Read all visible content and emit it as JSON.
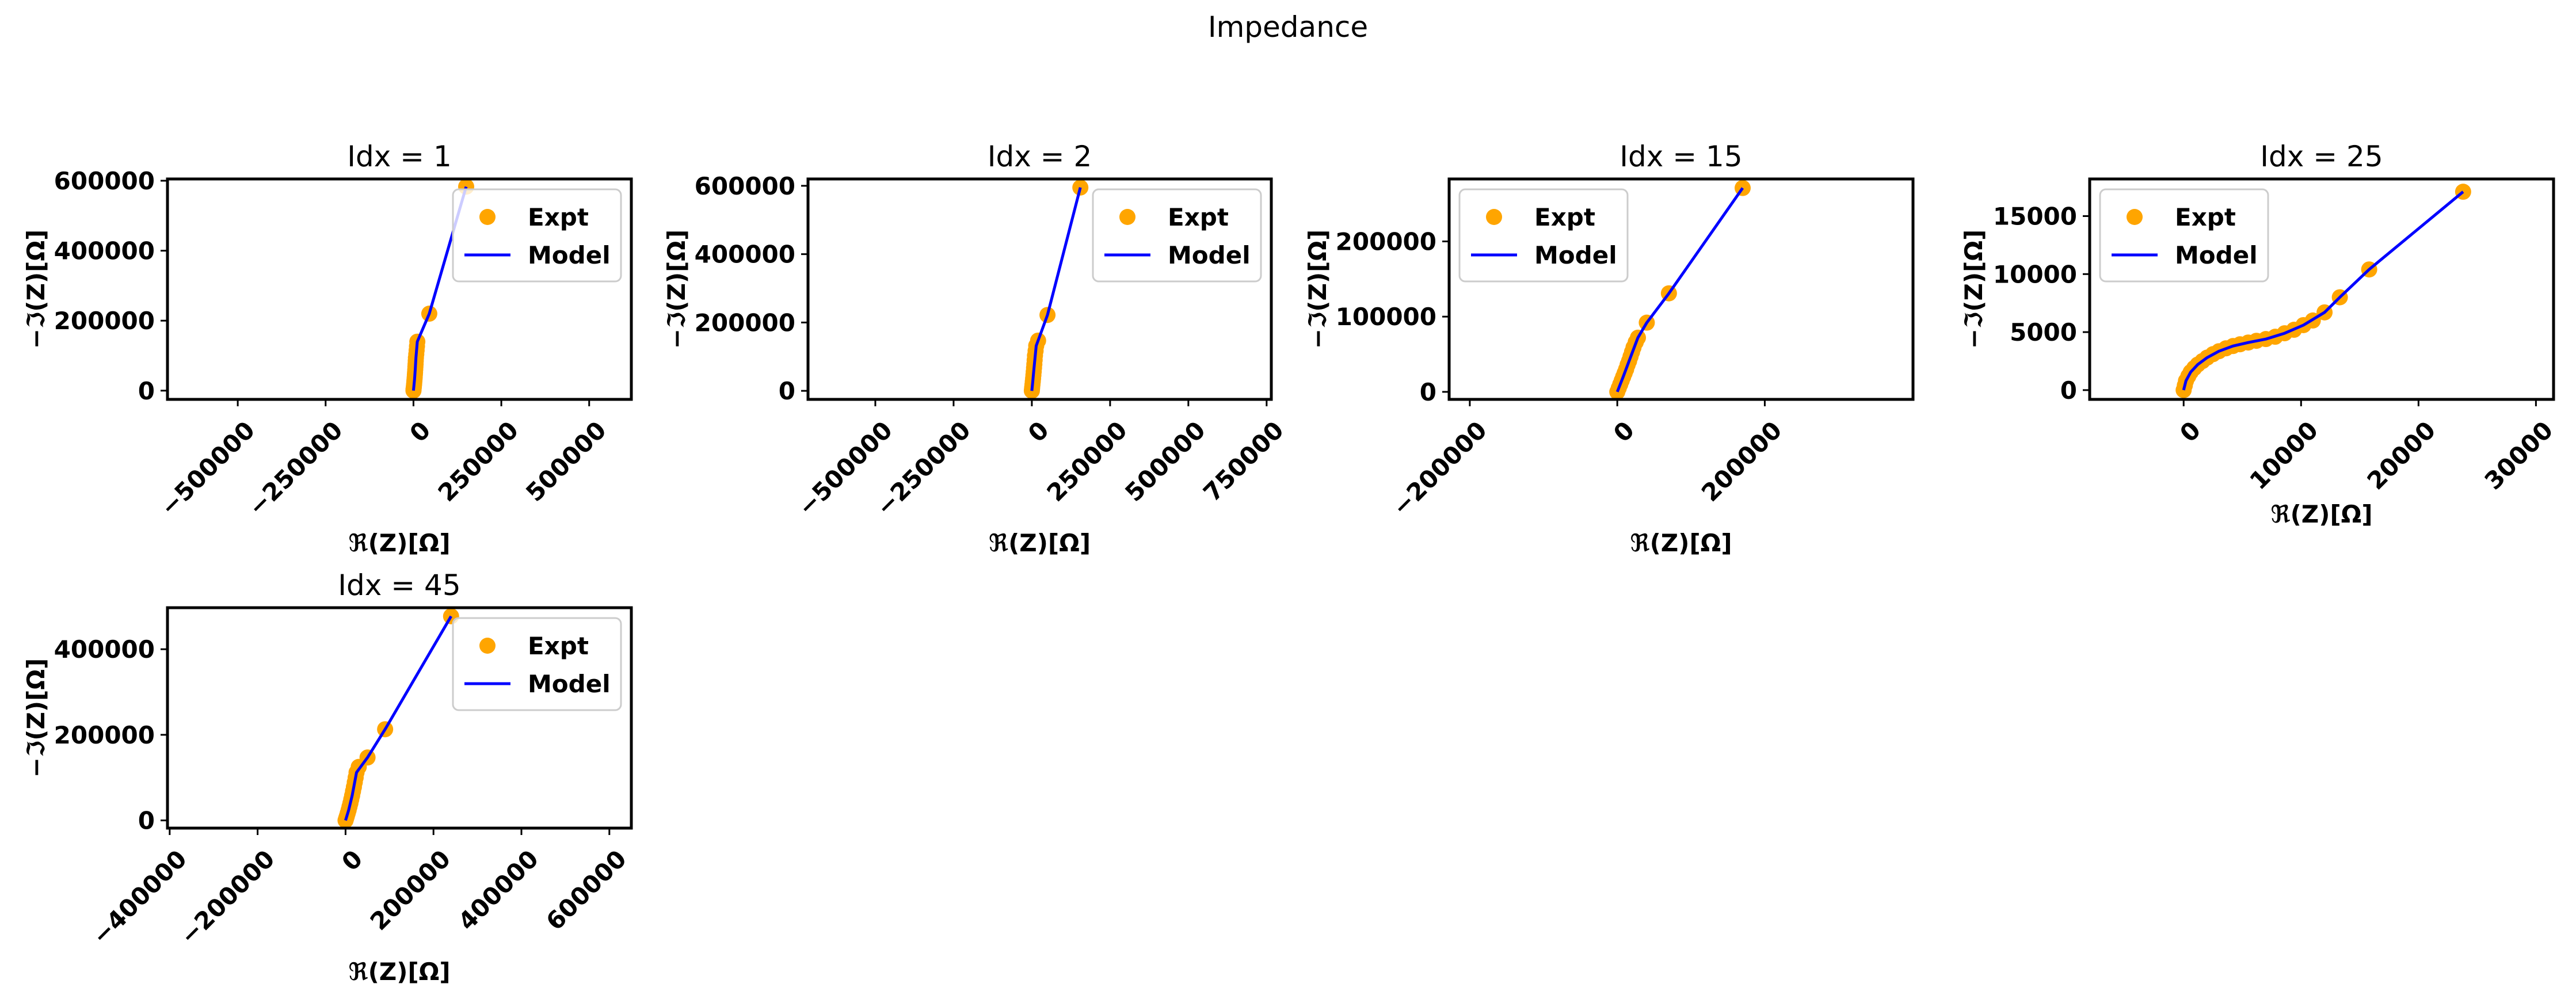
{
  "figure": {
    "title": "Impedance"
  },
  "colors": {
    "expt": "#FFA500",
    "model": "#0000FF",
    "axes": "#000000"
  },
  "chart_data": [
    {
      "type": "scatter",
      "title": "Idx = 1",
      "xlabel": "ℜ(Z)[Ω]",
      "ylabel": "−ℑ(Z)[Ω]",
      "xlim": [
        -700000,
        620000
      ],
      "ylim": [
        -25000,
        605000
      ],
      "xticks": [
        -500000,
        -250000,
        0,
        250000,
        500000
      ],
      "xtick_labels": [
        "−500000",
        "−250000",
        "0",
        "250000",
        "500000"
      ],
      "yticks": [
        0,
        200000,
        400000,
        600000
      ],
      "ytick_labels": [
        "0",
        "200000",
        "400000",
        "600000"
      ],
      "grid": false,
      "legend": "top-right",
      "series": [
        {
          "name": "Expt",
          "kind": "markers",
          "color": "#FFA500",
          "points": [
            [
              0,
              0
            ],
            [
              200,
              3000
            ],
            [
              500,
              6000
            ],
            [
              1000,
              10000
            ],
            [
              1500,
              15000
            ],
            [
              2000,
              20000
            ],
            [
              2500,
              26000
            ],
            [
              3000,
              32000
            ],
            [
              3500,
              38000
            ],
            [
              4000,
              45000
            ],
            [
              4500,
              52000
            ],
            [
              5000,
              60000
            ],
            [
              5500,
              68000
            ],
            [
              6000,
              76000
            ],
            [
              6500,
              85000
            ],
            [
              7000,
              94000
            ],
            [
              8000,
              104000
            ],
            [
              9000,
              115000
            ],
            [
              10000,
              127000
            ],
            [
              11000,
              140000
            ],
            [
              45000,
              220000
            ],
            [
              150000,
              583000
            ]
          ]
        },
        {
          "name": "Model",
          "kind": "line",
          "color": "#0000FF",
          "points": [
            [
              0,
              0
            ],
            [
              1000,
              10000
            ],
            [
              3000,
              32000
            ],
            [
              5000,
              60000
            ],
            [
              7000,
              94000
            ],
            [
              11000,
              140000
            ],
            [
              45000,
              220000
            ],
            [
              150000,
              583000
            ]
          ]
        }
      ]
    },
    {
      "type": "scatter",
      "title": "Idx = 2",
      "xlabel": "ℜ(Z)[Ω]",
      "ylabel": "−ℑ(Z)[Ω]",
      "xlim": [
        -715000,
        765000
      ],
      "ylim": [
        -25000,
        620000
      ],
      "xticks": [
        -500000,
        -250000,
        0,
        250000,
        500000,
        750000
      ],
      "xtick_labels": [
        "−500000",
        "−250000",
        "0",
        "250000",
        "500000",
        "750000"
      ],
      "yticks": [
        0,
        200000,
        400000,
        600000
      ],
      "ytick_labels": [
        "0",
        "200000",
        "400000",
        "600000"
      ],
      "grid": false,
      "legend": "top-right",
      "series": [
        {
          "name": "Expt",
          "kind": "markers",
          "color": "#FFA500",
          "points": [
            [
              0,
              0
            ],
            [
              500,
              5000
            ],
            [
              1000,
              10000
            ],
            [
              2000,
              18000
            ],
            [
              3000,
              27000
            ],
            [
              4000,
              36000
            ],
            [
              5000,
              46000
            ],
            [
              6000,
              56000
            ],
            [
              7000,
              67000
            ],
            [
              8000,
              78000
            ],
            [
              9000,
              90000
            ],
            [
              10000,
              103000
            ],
            [
              12000,
              117000
            ],
            [
              14000,
              132000
            ],
            [
              20000,
              147000
            ],
            [
              50000,
              222000
            ],
            [
              155000,
              595000
            ]
          ]
        },
        {
          "name": "Model",
          "kind": "line",
          "color": "#0000FF",
          "points": [
            [
              0,
              0
            ],
            [
              3000,
              27000
            ],
            [
              7000,
              67000
            ],
            [
              14000,
              132000
            ],
            [
              50000,
              222000
            ],
            [
              155000,
              595000
            ]
          ]
        }
      ]
    },
    {
      "type": "scatter",
      "title": "Idx = 15",
      "xlabel": "ℜ(Z)[Ω]",
      "ylabel": "−ℑ(Z)[Ω]",
      "xlim": [
        -228000,
        401000
      ],
      "ylim": [
        -10000,
        283000
      ],
      "xticks": [
        -200000,
        0,
        200000
      ],
      "xtick_labels": [
        "−200000",
        "0",
        "200000"
      ],
      "yticks": [
        0,
        100000,
        200000
      ],
      "ytick_labels": [
        "0",
        "100000",
        "200000"
      ],
      "grid": false,
      "legend": "top-left",
      "series": [
        {
          "name": "Expt",
          "kind": "markers",
          "color": "#FFA500",
          "points": [
            [
              0,
              0
            ],
            [
              2000,
              5000
            ],
            [
              4000,
              10000
            ],
            [
              6000,
              15000
            ],
            [
              8000,
              20000
            ],
            [
              10000,
              25000
            ],
            [
              12000,
              30000
            ],
            [
              14000,
              36000
            ],
            [
              16000,
              41000
            ],
            [
              18000,
              47000
            ],
            [
              20000,
              53000
            ],
            [
              22000,
              59000
            ],
            [
              25000,
              66000
            ],
            [
              28000,
              72000
            ],
            [
              40000,
              92000
            ],
            [
              70000,
              131000
            ],
            [
              170000,
              271000
            ]
          ]
        },
        {
          "name": "Model",
          "kind": "line",
          "color": "#0000FF",
          "points": [
            [
              0,
              0
            ],
            [
              8000,
              20000
            ],
            [
              16000,
              41000
            ],
            [
              28000,
              72000
            ],
            [
              40000,
              92000
            ],
            [
              70000,
              131000
            ],
            [
              170000,
              271000
            ]
          ]
        }
      ]
    },
    {
      "type": "scatter",
      "title": "Idx = 25",
      "xlabel": "ℜ(Z)[Ω]",
      "ylabel": "−ℑ(Z)[Ω]",
      "xlim": [
        -8000,
        31500
      ],
      "ylim": [
        -800,
        18200
      ],
      "xticks": [
        0,
        10000,
        20000,
        30000
      ],
      "xtick_labels": [
        "0",
        "10000",
        "20000",
        "30000"
      ],
      "yticks": [
        0,
        5000,
        10000,
        15000
      ],
      "ytick_labels": [
        "0",
        "5000",
        "10000",
        "15000"
      ],
      "grid": false,
      "legend": "top-left",
      "series": [
        {
          "name": "Expt",
          "kind": "markers",
          "color": "#FFA500",
          "points": [
            [
              0,
              0
            ],
            [
              100,
              400
            ],
            [
              200,
              800
            ],
            [
              400,
              1200
            ],
            [
              600,
              1550
            ],
            [
              900,
              1900
            ],
            [
              1200,
              2200
            ],
            [
              1600,
              2500
            ],
            [
              2000,
              2800
            ],
            [
              2500,
              3100
            ],
            [
              3000,
              3350
            ],
            [
              3600,
              3600
            ],
            [
              4200,
              3800
            ],
            [
              4800,
              3950
            ],
            [
              5500,
              4100
            ],
            [
              6200,
              4250
            ],
            [
              7000,
              4400
            ],
            [
              7800,
              4600
            ],
            [
              8600,
              4900
            ],
            [
              9400,
              5200
            ],
            [
              10200,
              5600
            ],
            [
              11000,
              6000
            ],
            [
              12000,
              6700
            ],
            [
              13300,
              8000
            ],
            [
              15800,
              10400
            ],
            [
              23800,
              17100
            ]
          ]
        },
        {
          "name": "Model",
          "kind": "line",
          "color": "#0000FF",
          "points": [
            [
              0,
              0
            ],
            [
              200,
              800
            ],
            [
              600,
              1550
            ],
            [
              1200,
              2200
            ],
            [
              2000,
              2800
            ],
            [
              3000,
              3350
            ],
            [
              4200,
              3800
            ],
            [
              5500,
              4100
            ],
            [
              7000,
              4400
            ],
            [
              8600,
              4900
            ],
            [
              10200,
              5600
            ],
            [
              12000,
              6700
            ],
            [
              13300,
              8000
            ],
            [
              15800,
              10400
            ],
            [
              23800,
              17100
            ]
          ]
        }
      ]
    },
    {
      "type": "scatter",
      "title": "Idx = 45",
      "xlabel": "ℜ(Z)[Ω]",
      "ylabel": "−ℑ(Z)[Ω]",
      "xlim": [
        -405000,
        650000
      ],
      "ylim": [
        -18000,
        497000
      ],
      "xticks": [
        -400000,
        -200000,
        0,
        200000,
        400000,
        600000
      ],
      "xtick_labels": [
        "−400000",
        "−200000",
        "0",
        "200000",
        "400000",
        "600000"
      ],
      "yticks": [
        0,
        200000,
        400000
      ],
      "ytick_labels": [
        "0",
        "200000",
        "400000"
      ],
      "grid": false,
      "legend": "top-right",
      "series": [
        {
          "name": "Expt",
          "kind": "markers",
          "color": "#FFA500",
          "points": [
            [
              0,
              0
            ],
            [
              1500,
              5000
            ],
            [
              3000,
              10000
            ],
            [
              5000,
              17000
            ],
            [
              7000,
              24000
            ],
            [
              9000,
              32000
            ],
            [
              11000,
              40000
            ],
            [
              13000,
              49000
            ],
            [
              15000,
              58000
            ],
            [
              17000,
              68000
            ],
            [
              19000,
              78000
            ],
            [
              21000,
              89000
            ],
            [
              23000,
              100000
            ],
            [
              25000,
              112000
            ],
            [
              30000,
              125000
            ],
            [
              50000,
              147000
            ],
            [
              90000,
              213000
            ],
            [
              240000,
              477000
            ]
          ]
        },
        {
          "name": "Model",
          "kind": "line",
          "color": "#0000FF",
          "points": [
            [
              0,
              0
            ],
            [
              7000,
              24000
            ],
            [
              15000,
              58000
            ],
            [
              25000,
              112000
            ],
            [
              50000,
              147000
            ],
            [
              90000,
              213000
            ],
            [
              240000,
              477000
            ]
          ]
        }
      ]
    }
  ]
}
